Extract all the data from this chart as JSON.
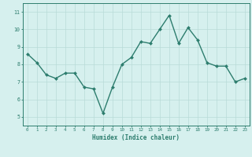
{
  "x": [
    0,
    1,
    2,
    3,
    4,
    5,
    6,
    7,
    8,
    9,
    10,
    11,
    12,
    13,
    14,
    15,
    16,
    17,
    18,
    19,
    20,
    21,
    22,
    23
  ],
  "y": [
    8.6,
    8.1,
    7.4,
    7.2,
    7.5,
    7.5,
    6.7,
    6.6,
    5.2,
    6.7,
    8.0,
    8.4,
    9.3,
    9.2,
    10.0,
    10.8,
    9.2,
    10.1,
    9.4,
    8.1,
    7.9,
    7.9,
    7.0,
    7.2
  ],
  "xlabel": "Humidex (Indice chaleur)",
  "xlim": [
    -0.5,
    23.5
  ],
  "ylim": [
    4.5,
    11.5
  ],
  "xticks": [
    0,
    1,
    2,
    3,
    4,
    5,
    6,
    7,
    8,
    9,
    10,
    11,
    12,
    13,
    14,
    15,
    16,
    17,
    18,
    19,
    20,
    21,
    22,
    23
  ],
  "yticks": [
    5,
    6,
    7,
    8,
    9,
    10,
    11
  ],
  "line_color": "#2d7d6e",
  "marker_color": "#2d7d6e",
  "bg_color": "#d6f0ee",
  "grid_color": "#b8dbd8",
  "axes_edge_color": "#2d7d6e",
  "tick_label_color": "#2d7d6e",
  "xlabel_color": "#2d7d6e",
  "markersize": 2.0,
  "linewidth": 1.0
}
